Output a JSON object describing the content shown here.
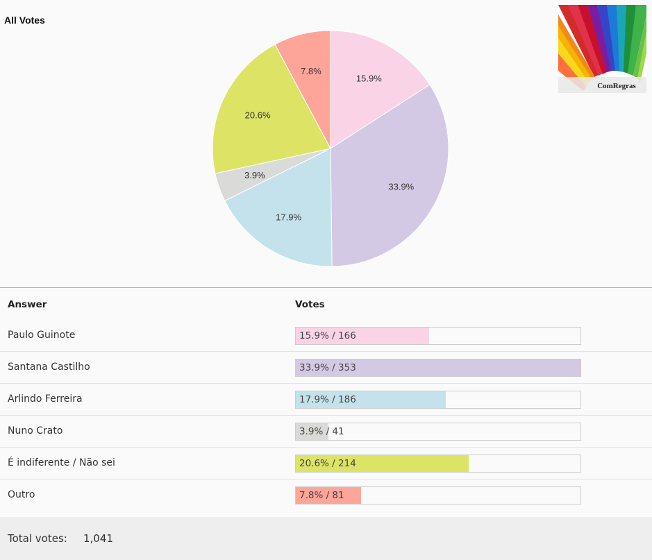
{
  "chart_data": {
    "type": "pie",
    "title": "All Votes",
    "slices": [
      {
        "label": "Paulo Guinote",
        "percent": 15.9,
        "value": 166,
        "color": "#fad4e6"
      },
      {
        "label": "Santana Castilho",
        "percent": 33.9,
        "value": 353,
        "color": "#d4c9e5"
      },
      {
        "label": "Arlindo Ferreira",
        "percent": 17.9,
        "value": 186,
        "color": "#c4e2ec"
      },
      {
        "label": "Nuno Crato",
        "percent": 3.9,
        "value": 41,
        "color": "#dadad8"
      },
      {
        "label": "É indiferente / Não sei",
        "percent": 20.6,
        "value": 214,
        "color": "#dde465"
      },
      {
        "label": "Outro",
        "percent": 7.8,
        "value": 81,
        "color": "#fea59a"
      }
    ]
  },
  "logo": {
    "text": "ComRegras"
  },
  "table": {
    "answer_header": "Answer",
    "votes_header": "Votes",
    "rows": [
      {
        "answer": "Paulo Guinote",
        "votes_text": "15.9% / 166",
        "fraction": 0.159
      },
      {
        "answer": "Santana Castilho",
        "votes_text": "33.9% / 353",
        "fraction": 0.339
      },
      {
        "answer": "Arlindo Ferreira",
        "votes_text": "17.9% / 186",
        "fraction": 0.179
      },
      {
        "answer": "Nuno Crato",
        "votes_text": "3.9% / 41",
        "fraction": 0.039
      },
      {
        "answer": "É indiferente / Não sei",
        "votes_text": "20.6% / 214",
        "fraction": 0.206
      },
      {
        "answer": "Outro",
        "votes_text": "7.8% / 81",
        "fraction": 0.078
      }
    ]
  },
  "footer": {
    "label": "Total votes:",
    "value": "1,041"
  }
}
